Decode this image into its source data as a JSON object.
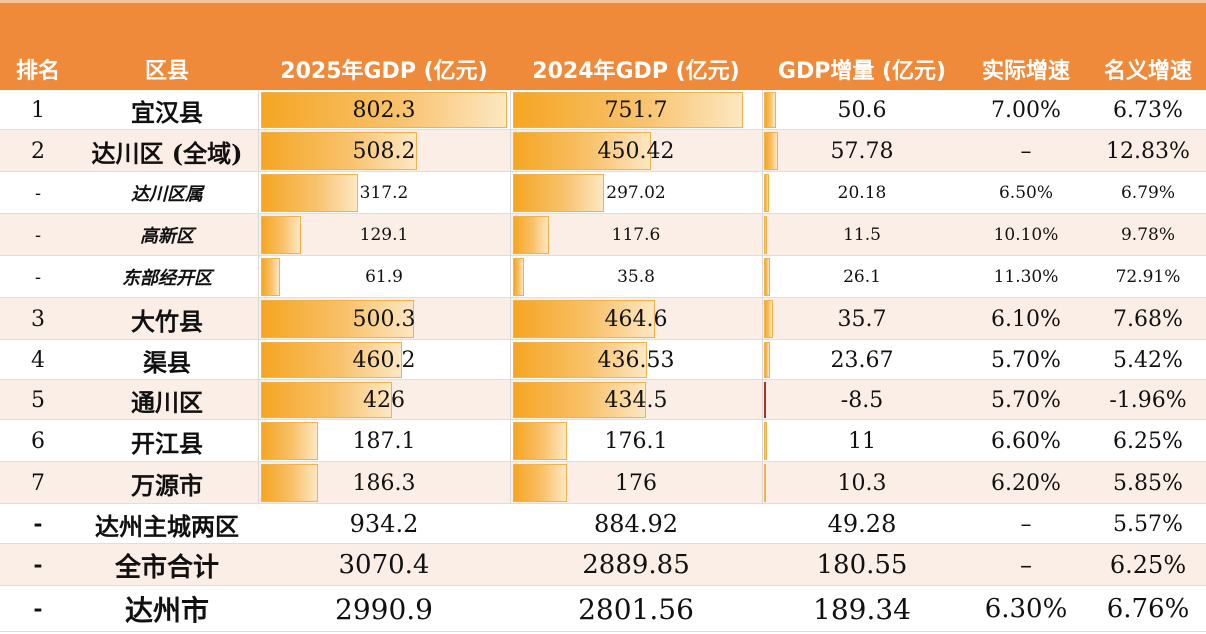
{
  "header": {
    "rank": "排名",
    "district": "区县",
    "gdp2025": "2025年GDP (亿元)",
    "gdp2024": "2024年GDP (亿元)",
    "increase": "GDP增量 (亿元)",
    "real_growth": "实际增速",
    "nominal_growth": "名义增速"
  },
  "colors": {
    "header_bg": "#ef8a3b",
    "bar": "#f5a623",
    "row_alt": "#fbeee6",
    "negative_bar": "#c0392b"
  },
  "rows": [
    {
      "rank": "1",
      "name": "宜汉县",
      "gdp2025": "802.3",
      "gdp2025_value": 802.3,
      "gdp2024": "751.7",
      "gdp2024_value": 751.7,
      "increase": "50.6",
      "increase_value": 50.6,
      "real": "7.00%",
      "nominal": "6.73%",
      "style": "major"
    },
    {
      "rank": "2",
      "name": "达川区 (全域)",
      "gdp2025": "508.2",
      "gdp2025_value": 508.2,
      "gdp2024": "450.42",
      "gdp2024_value": 450.42,
      "increase": "57.78",
      "increase_value": 57.78,
      "real": "–",
      "nominal": "12.83%",
      "style": "major"
    },
    {
      "rank": "-",
      "name": "达川区属",
      "gdp2025": "317.2",
      "gdp2025_value": 317.2,
      "gdp2024": "297.02",
      "gdp2024_value": 297.02,
      "increase": "20.18",
      "increase_value": 20.18,
      "real": "6.50%",
      "nominal": "6.79%",
      "style": "sub"
    },
    {
      "rank": "-",
      "name": "高新区",
      "gdp2025": "129.1",
      "gdp2025_value": 129.1,
      "gdp2024": "117.6",
      "gdp2024_value": 117.6,
      "increase": "11.5",
      "increase_value": 11.5,
      "real": "10.10%",
      "nominal": "9.78%",
      "style": "sub"
    },
    {
      "rank": "-",
      "name": "东部经开区",
      "gdp2025": "61.9",
      "gdp2025_value": 61.9,
      "gdp2024": "35.8",
      "gdp2024_value": 35.8,
      "increase": "26.1",
      "increase_value": 26.1,
      "real": "11.30%",
      "nominal": "72.91%",
      "style": "sub"
    },
    {
      "rank": "3",
      "name": "大竹县",
      "gdp2025": "500.3",
      "gdp2025_value": 500.3,
      "gdp2024": "464.6",
      "gdp2024_value": 464.6,
      "increase": "35.7",
      "increase_value": 35.7,
      "real": "6.10%",
      "nominal": "7.68%",
      "style": "major"
    },
    {
      "rank": "4",
      "name": "渠县",
      "gdp2025": "460.2",
      "gdp2025_value": 460.2,
      "gdp2024": "436.53",
      "gdp2024_value": 436.53,
      "increase": "23.67",
      "increase_value": 23.67,
      "real": "5.70%",
      "nominal": "5.42%",
      "style": "major"
    },
    {
      "rank": "5",
      "name": "通川区",
      "gdp2025": "426",
      "gdp2025_value": 426,
      "gdp2024": "434.5",
      "gdp2024_value": 434.5,
      "increase": "-8.5",
      "increase_value": -8.5,
      "real": "5.70%",
      "nominal": "-1.96%",
      "style": "major"
    },
    {
      "rank": "6",
      "name": "开江县",
      "gdp2025": "187.1",
      "gdp2025_value": 187.1,
      "gdp2024": "176.1",
      "gdp2024_value": 176.1,
      "increase": "11",
      "increase_value": 11,
      "real": "6.60%",
      "nominal": "6.25%",
      "style": "major"
    },
    {
      "rank": "7",
      "name": "万源市",
      "gdp2025": "186.3",
      "gdp2025_value": 186.3,
      "gdp2024": "176",
      "gdp2024_value": 176,
      "increase": "10.3",
      "increase_value": 10.3,
      "real": "6.20%",
      "nominal": "5.85%",
      "style": "major"
    }
  ],
  "summary": [
    {
      "rank": "-",
      "name": "达州主城两区",
      "gdp2025": "934.2",
      "gdp2024": "884.92",
      "increase": "49.28",
      "real": "–",
      "nominal": "5.57%"
    },
    {
      "rank": "-",
      "name": "全市合计",
      "gdp2025": "3070.4",
      "gdp2024": "2889.85",
      "increase": "180.55",
      "real": "–",
      "nominal": "6.25%"
    },
    {
      "rank": "-",
      "name": "达州市",
      "gdp2025": "2990.9",
      "gdp2024": "2801.56",
      "increase": "189.34",
      "real": "6.30%",
      "nominal": "6.76%"
    }
  ]
}
